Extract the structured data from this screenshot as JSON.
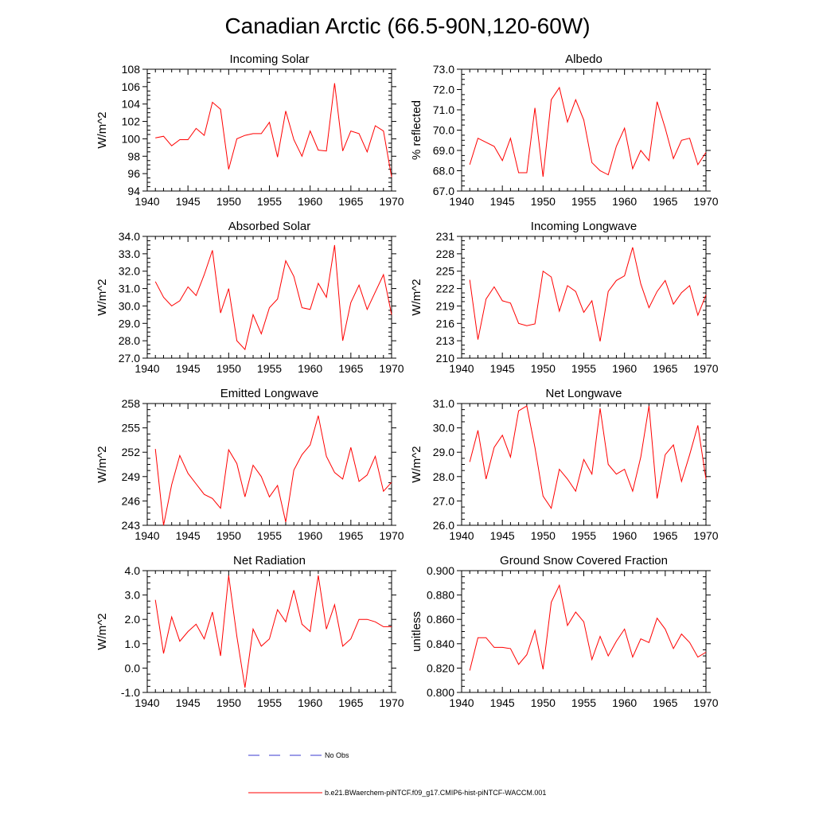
{
  "figure_title": "Canadian Arctic (66.5-90N,120-60W)",
  "legend": {
    "obs_label": "No Obs",
    "model_label": "b.e21.BWaerchem-piNTCF.f09_g17.CMIP6-hist-piNTCF-WACCM.001",
    "obs_color": "#3a3ad0",
    "model_color": "#ff0000"
  },
  "chart_data": [
    {
      "type": "line",
      "title": "Incoming Solar",
      "ylabel": "W/m^2",
      "xlim": [
        1940,
        1970
      ],
      "ylim": [
        94,
        108
      ],
      "yticks": [
        94,
        96,
        98,
        100,
        102,
        104,
        106,
        108
      ],
      "ytick_labels": [
        "94",
        "96",
        "98",
        "100",
        "102",
        "104",
        "106",
        "108"
      ],
      "xticks": [
        1940,
        1945,
        1950,
        1955,
        1960,
        1965,
        1970
      ],
      "x": [
        1941,
        1942,
        1943,
        1944,
        1945,
        1946,
        1947,
        1948,
        1949,
        1950,
        1951,
        1952,
        1953,
        1954,
        1955,
        1956,
        1957,
        1958,
        1959,
        1960,
        1961,
        1962,
        1963,
        1964,
        1965,
        1966,
        1967,
        1968,
        1969,
        1970
      ],
      "series": [
        {
          "values": [
            100.1,
            100.3,
            99.2,
            99.9,
            99.9,
            101.2,
            100.4,
            104.2,
            103.4,
            96.5,
            100.0,
            100.4,
            100.6,
            100.6,
            101.9,
            97.9,
            103.2,
            99.9,
            98.0,
            100.9,
            98.7,
            98.6,
            106.4,
            98.6,
            100.9,
            100.6,
            98.5,
            101.5,
            100.9,
            95.6
          ]
        }
      ]
    },
    {
      "type": "line",
      "title": "Albedo",
      "ylabel": "% reflected",
      "xlim": [
        1940,
        1970
      ],
      "ylim": [
        67,
        73
      ],
      "yticks": [
        67,
        68,
        69,
        70,
        71,
        72,
        73
      ],
      "ytick_labels": [
        "67.0",
        "68.0",
        "69.0",
        "70.0",
        "71.0",
        "72.0",
        "73.0"
      ],
      "xticks": [
        1940,
        1945,
        1950,
        1955,
        1960,
        1965,
        1970
      ],
      "x": [
        1941,
        1942,
        1943,
        1944,
        1945,
        1946,
        1947,
        1948,
        1949,
        1950,
        1951,
        1952,
        1953,
        1954,
        1955,
        1956,
        1957,
        1958,
        1959,
        1960,
        1961,
        1962,
        1963,
        1964,
        1965,
        1966,
        1967,
        1968,
        1969,
        1970
      ],
      "series": [
        {
          "values": [
            68.3,
            69.6,
            69.4,
            69.2,
            68.5,
            69.6,
            67.9,
            67.9,
            71.1,
            67.7,
            71.5,
            72.1,
            70.4,
            71.5,
            70.5,
            68.4,
            68.0,
            67.8,
            69.2,
            70.1,
            68.1,
            69.0,
            68.5,
            71.4,
            70.1,
            68.6,
            69.5,
            69.6,
            68.3,
            68.9
          ]
        }
      ]
    },
    {
      "type": "line",
      "title": "Absorbed Solar",
      "ylabel": "W/m^2",
      "xlim": [
        1940,
        1970
      ],
      "ylim": [
        27,
        34
      ],
      "yticks": [
        27,
        28,
        29,
        30,
        31,
        32,
        33,
        34
      ],
      "ytick_labels": [
        "27.0",
        "28.0",
        "29.0",
        "30.0",
        "31.0",
        "32.0",
        "33.0",
        "34.0"
      ],
      "xticks": [
        1940,
        1945,
        1950,
        1955,
        1960,
        1965,
        1970
      ],
      "x": [
        1941,
        1942,
        1943,
        1944,
        1945,
        1946,
        1947,
        1948,
        1949,
        1950,
        1951,
        1952,
        1953,
        1954,
        1955,
        1956,
        1957,
        1958,
        1959,
        1960,
        1961,
        1962,
        1963,
        1964,
        1965,
        1966,
        1967,
        1968,
        1969,
        1970
      ],
      "series": [
        {
          "values": [
            31.4,
            30.5,
            30.0,
            30.3,
            31.1,
            30.6,
            31.8,
            33.2,
            29.6,
            31.0,
            28.0,
            27.5,
            29.5,
            28.4,
            29.9,
            30.4,
            32.6,
            31.7,
            29.9,
            29.8,
            31.3,
            30.5,
            33.5,
            28.0,
            30.2,
            31.2,
            29.8,
            30.8,
            31.8,
            29.5
          ]
        }
      ]
    },
    {
      "type": "line",
      "title": "Incoming Longwave",
      "ylabel": "W/m^2",
      "xlim": [
        1940,
        1970
      ],
      "ylim": [
        210,
        231
      ],
      "yticks": [
        210,
        213,
        216,
        219,
        222,
        225,
        228,
        231
      ],
      "ytick_labels": [
        "210",
        "213",
        "216",
        "219",
        "222",
        "225",
        "228",
        "231"
      ],
      "xticks": [
        1940,
        1945,
        1950,
        1955,
        1960,
        1965,
        1970
      ],
      "x": [
        1941,
        1942,
        1943,
        1944,
        1945,
        1946,
        1947,
        1948,
        1949,
        1950,
        1951,
        1952,
        1953,
        1954,
        1955,
        1956,
        1957,
        1958,
        1959,
        1960,
        1961,
        1962,
        1963,
        1964,
        1965,
        1966,
        1967,
        1968,
        1969,
        1970
      ],
      "series": [
        {
          "values": [
            223.5,
            213.2,
            220.2,
            222.3,
            219.9,
            219.5,
            216.0,
            215.6,
            215.9,
            225.0,
            224.0,
            218.1,
            222.5,
            221.5,
            217.9,
            219.9,
            212.9,
            221.5,
            223.4,
            224.2,
            229.1,
            222.8,
            218.7,
            221.5,
            223.4,
            219.3,
            221.3,
            222.5,
            217.4,
            220.9
          ]
        }
      ]
    },
    {
      "type": "line",
      "title": "Emitted Longwave",
      "ylabel": "W/m^2",
      "xlim": [
        1940,
        1970
      ],
      "ylim": [
        243,
        258
      ],
      "yticks": [
        243,
        246,
        249,
        252,
        255,
        258
      ],
      "ytick_labels": [
        "243",
        "246",
        "249",
        "252",
        "255",
        "258"
      ],
      "xticks": [
        1940,
        1945,
        1950,
        1955,
        1960,
        1965,
        1970
      ],
      "x": [
        1941,
        1942,
        1943,
        1944,
        1945,
        1946,
        1947,
        1948,
        1949,
        1950,
        1951,
        1952,
        1953,
        1954,
        1955,
        1956,
        1957,
        1958,
        1959,
        1960,
        1961,
        1962,
        1963,
        1964,
        1965,
        1966,
        1967,
        1968,
        1969,
        1970
      ],
      "series": [
        {
          "values": [
            252.4,
            243.0,
            248.0,
            251.6,
            249.4,
            248.1,
            246.8,
            246.3,
            245.1,
            252.3,
            250.6,
            246.5,
            250.4,
            249.0,
            246.5,
            247.9,
            243.4,
            249.8,
            251.7,
            252.9,
            256.5,
            251.5,
            249.5,
            248.7,
            252.6,
            248.4,
            249.2,
            251.5,
            247.2,
            248.3
          ]
        }
      ]
    },
    {
      "type": "line",
      "title": "Net Longwave",
      "ylabel": "W/m^2",
      "xlim": [
        1940,
        1970
      ],
      "ylim": [
        26,
        31
      ],
      "yticks": [
        26,
        27,
        28,
        29,
        30,
        31
      ],
      "ytick_labels": [
        "26.0",
        "27.0",
        "28.0",
        "29.0",
        "30.0",
        "31.0"
      ],
      "xticks": [
        1940,
        1945,
        1950,
        1955,
        1960,
        1965,
        1970
      ],
      "x": [
        1941,
        1942,
        1943,
        1944,
        1945,
        1946,
        1947,
        1948,
        1949,
        1950,
        1951,
        1952,
        1953,
        1954,
        1955,
        1956,
        1957,
        1958,
        1959,
        1960,
        1961,
        1962,
        1963,
        1964,
        1965,
        1966,
        1967,
        1968,
        1969,
        1970
      ],
      "series": [
        {
          "values": [
            28.6,
            29.9,
            27.9,
            29.2,
            29.7,
            28.8,
            30.7,
            30.9,
            29.2,
            27.2,
            26.7,
            28.3,
            27.9,
            27.4,
            28.7,
            28.1,
            30.8,
            28.5,
            28.1,
            28.3,
            27.4,
            28.8,
            30.9,
            27.1,
            28.9,
            29.3,
            27.8,
            28.9,
            30.1,
            27.9
          ]
        }
      ]
    },
    {
      "type": "line",
      "title": "Net Radiation",
      "ylabel": "W/m^2",
      "xlim": [
        1940,
        1970
      ],
      "ylim": [
        -1,
        4
      ],
      "yticks": [
        -1,
        0,
        1,
        2,
        3,
        4
      ],
      "ytick_labels": [
        "-1.0",
        "0.0",
        "1.0",
        "2.0",
        "3.0",
        "4.0"
      ],
      "xticks": [
        1940,
        1945,
        1950,
        1955,
        1960,
        1965,
        1970
      ],
      "x": [
        1941,
        1942,
        1943,
        1944,
        1945,
        1946,
        1947,
        1948,
        1949,
        1950,
        1951,
        1952,
        1953,
        1954,
        1955,
        1956,
        1957,
        1958,
        1959,
        1960,
        1961,
        1962,
        1963,
        1964,
        1965,
        1966,
        1967,
        1968,
        1969,
        1970
      ],
      "series": [
        {
          "values": [
            2.8,
            0.6,
            2.1,
            1.1,
            1.5,
            1.8,
            1.2,
            2.3,
            0.5,
            3.8,
            1.3,
            -0.8,
            1.6,
            0.9,
            1.2,
            2.4,
            1.9,
            3.2,
            1.8,
            1.5,
            3.8,
            1.6,
            2.6,
            0.9,
            1.2,
            2.0,
            2.0,
            1.9,
            1.7,
            1.7
          ]
        }
      ]
    },
    {
      "type": "line",
      "title": "Ground Snow Covered Fraction",
      "ylabel": "unitless",
      "xlim": [
        1940,
        1970
      ],
      "ylim": [
        0.8,
        0.9
      ],
      "yticks": [
        0.8,
        0.82,
        0.84,
        0.86,
        0.88,
        0.9
      ],
      "ytick_labels": [
        "0.800",
        "0.820",
        "0.840",
        "0.860",
        "0.880",
        "0.900"
      ],
      "xticks": [
        1940,
        1945,
        1950,
        1955,
        1960,
        1965,
        1970
      ],
      "x": [
        1941,
        1942,
        1943,
        1944,
        1945,
        1946,
        1947,
        1948,
        1949,
        1950,
        1951,
        1952,
        1953,
        1954,
        1955,
        1956,
        1957,
        1958,
        1959,
        1960,
        1961,
        1962,
        1963,
        1964,
        1965,
        1966,
        1967,
        1968,
        1969,
        1970
      ],
      "series": [
        {
          "values": [
            0.818,
            0.845,
            0.845,
            0.837,
            0.837,
            0.836,
            0.823,
            0.831,
            0.851,
            0.819,
            0.874,
            0.888,
            0.855,
            0.866,
            0.858,
            0.827,
            0.846,
            0.83,
            0.842,
            0.852,
            0.829,
            0.844,
            0.841,
            0.861,
            0.852,
            0.836,
            0.848,
            0.841,
            0.829,
            0.833
          ]
        }
      ]
    }
  ]
}
